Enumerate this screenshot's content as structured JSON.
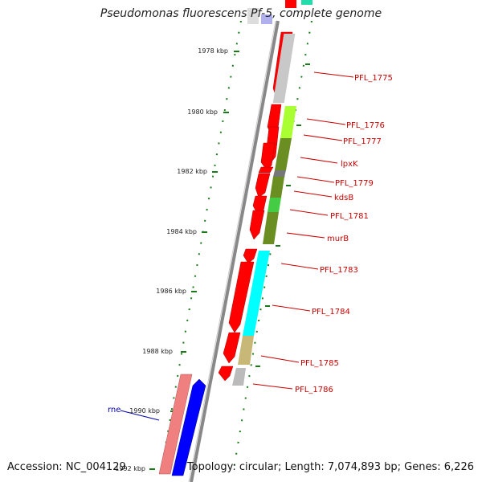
{
  "title": "Pseudomonas fluorescens Pf-5, complete genome",
  "footer": {
    "accession": "Accession: NC_004129",
    "stats": "Topology: circular; Length: 7,074,893 bp; Genes: 6,226"
  },
  "tick_labels": [
    "1978 kbp",
    "1980 kbp",
    "1982 kbp",
    "1984 kbp",
    "1986 kbp",
    "1988 kbp",
    "1990 kbp",
    "1992 kbp"
  ],
  "gene_labels_right": [
    "PFL_1775",
    "PFL_1776",
    "PFL_1777",
    "lpxK",
    "PFL_1779",
    "kdsB",
    "PFL_1781",
    "murB",
    "PFL_1783",
    "PFL_1784",
    "PFL_1785",
    "PFL_1786"
  ],
  "gene_labels_left": [
    "rne"
  ],
  "colors": {
    "backbone": "#888888",
    "forward_gene": "#ff0000",
    "reverse_gene": "#0000ff",
    "pseudo_gene": "#f08080",
    "tick": "#1a7a1a",
    "label_red": "#cc0000",
    "label_blue": "#0000aa"
  }
}
